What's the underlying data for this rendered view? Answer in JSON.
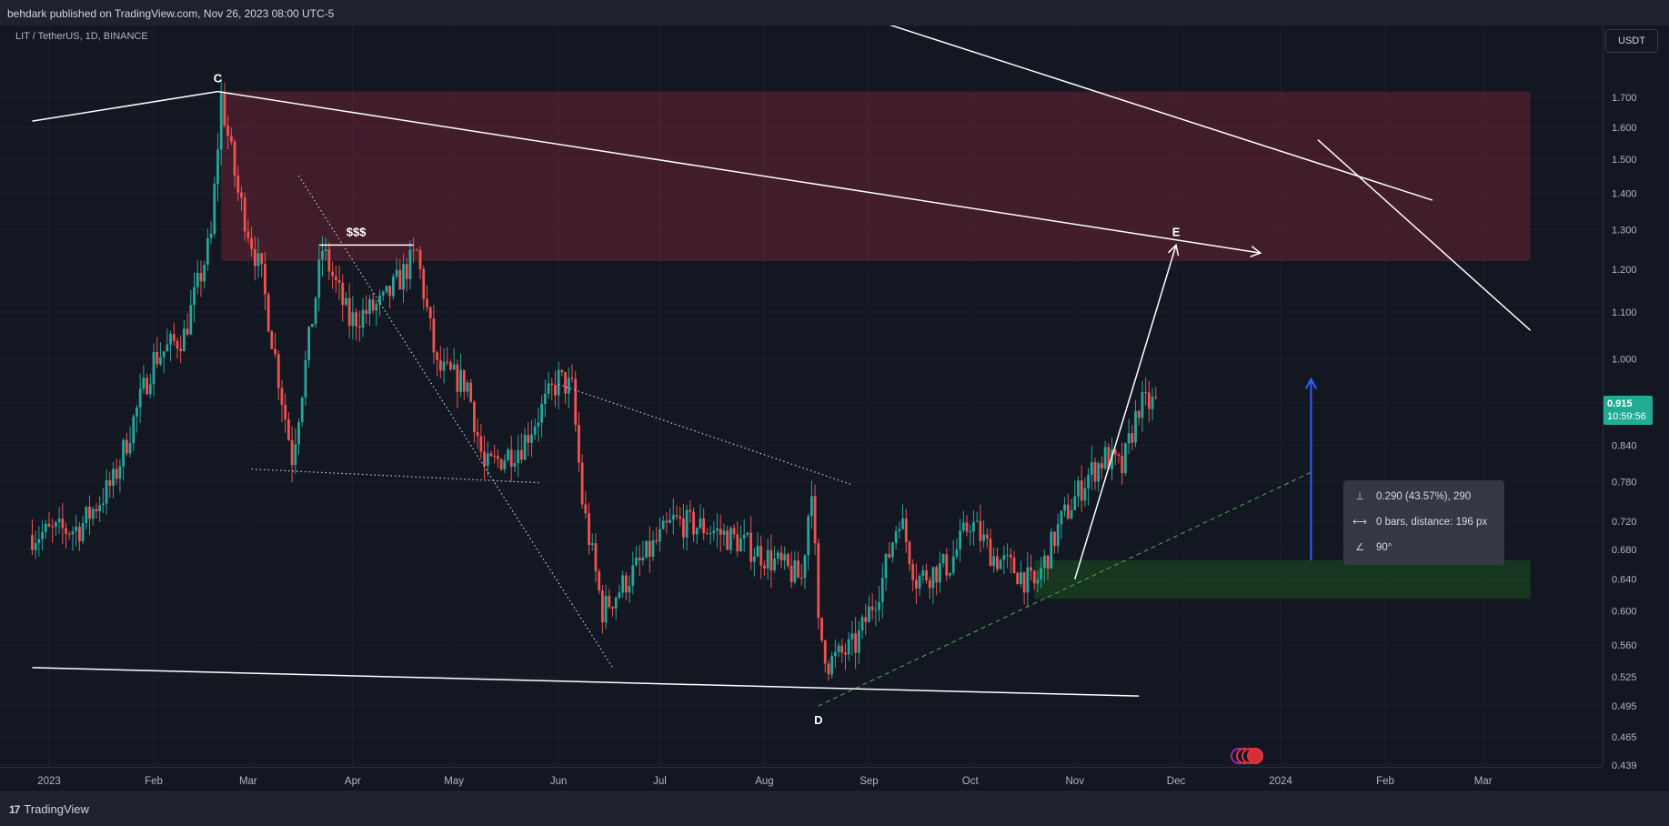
{
  "header": {
    "published": "behdark published on TradingView.com, Nov 26, 2023 08:00 UTC-5"
  },
  "symbol": {
    "label": "LIT / TetherUS, 1D, BINANCE"
  },
  "currency_button": "USDT",
  "last_price": {
    "price": "0.915",
    "countdown": "10:59:56"
  },
  "footer": {
    "logo_text": "TradingView"
  },
  "colors": {
    "background": "#131722",
    "up": "#26a69a",
    "down": "#ef5350",
    "supply_zone": "#e8334c",
    "demand_zone": "#1b5e20",
    "measure_arrow": "#2962ff"
  },
  "measure_tooltip": {
    "price_change": "0.290 (43.57%), 290",
    "bars_distance": "0 bars, distance: 196 px",
    "angle": "90°",
    "icons": [
      "price-range-icon",
      "bars-range-icon",
      "angle-icon"
    ]
  },
  "chart_data": {
    "type": "candlestick",
    "pair": "LIT / TetherUS",
    "interval": "1D",
    "exchange": "BINANCE",
    "price_scale": "log",
    "y_ticks": [
      0.439,
      0.465,
      0.495,
      0.525,
      0.56,
      0.6,
      0.64,
      0.68,
      0.72,
      0.78,
      0.84,
      0.915,
      1.0,
      1.1,
      1.2,
      1.3,
      1.4,
      1.5,
      1.6,
      1.7
    ],
    "y_tick_labels": [
      "0.439",
      "0.465",
      "0.495",
      "0.525",
      "0.560",
      "0.600",
      "0.640",
      "0.680",
      "0.720",
      "0.780",
      "0.840",
      "1.000",
      "1.100",
      "1.200",
      "1.300",
      "1.400",
      "1.500",
      "1.600",
      "1.700"
    ],
    "x_labels": [
      "2023",
      "Feb",
      "Mar",
      "Apr",
      "May",
      "Jun",
      "Jul",
      "Aug",
      "Sep",
      "Oct",
      "Nov",
      "Dec",
      "2024",
      "Feb",
      "Mar"
    ],
    "x_dates": [
      "2023-01-01",
      "2023-02-01",
      "2023-03-01",
      "2023-04-01",
      "2023-05-01",
      "2023-06-01",
      "2023-07-01",
      "2023-08-01",
      "2023-09-01",
      "2023-10-01",
      "2023-11-01",
      "2023-12-01",
      "2024-01-01",
      "2024-02-01",
      "2024-03-01"
    ],
    "last_close": 0.915,
    "price_path": [
      [
        "2022-12-27",
        0.7
      ],
      [
        "2023-01-10",
        0.71
      ],
      [
        "2023-01-20",
        0.78
      ],
      [
        "2023-02-01",
        1.0
      ],
      [
        "2023-02-10",
        1.05
      ],
      [
        "2023-02-18",
        1.28
      ],
      [
        "2023-02-21",
        1.7
      ],
      [
        "2023-02-26",
        1.4
      ],
      [
        "2023-03-05",
        1.18
      ],
      [
        "2023-03-14",
        0.82
      ],
      [
        "2023-03-23",
        1.25
      ],
      [
        "2023-03-31",
        1.08
      ],
      [
        "2023-04-10",
        1.12
      ],
      [
        "2023-04-20",
        1.24
      ],
      [
        "2023-04-26",
        0.98
      ],
      [
        "2023-05-05",
        0.95
      ],
      [
        "2023-05-10",
        0.8
      ],
      [
        "2023-05-21",
        0.84
      ],
      [
        "2023-06-01",
        0.96
      ],
      [
        "2023-06-05",
        0.94
      ],
      [
        "2023-06-08",
        0.75
      ],
      [
        "2023-06-14",
        0.6
      ],
      [
        "2023-06-25",
        0.66
      ],
      [
        "2023-07-05",
        0.72
      ],
      [
        "2023-07-15",
        0.71
      ],
      [
        "2023-07-25",
        0.69
      ],
      [
        "2023-08-05",
        0.66
      ],
      [
        "2023-08-12",
        0.64
      ],
      [
        "2023-08-15",
        0.78
      ],
      [
        "2023-08-17",
        0.58
      ],
      [
        "2023-08-20",
        0.54
      ],
      [
        "2023-08-28",
        0.56
      ],
      [
        "2023-09-05",
        0.64
      ],
      [
        "2023-09-10",
        0.73
      ],
      [
        "2023-09-15",
        0.64
      ],
      [
        "2023-09-25",
        0.66
      ],
      [
        "2023-10-01",
        0.72
      ],
      [
        "2023-10-08",
        0.67
      ],
      [
        "2023-10-15",
        0.65
      ],
      [
        "2023-10-20",
        0.63
      ],
      [
        "2023-10-28",
        0.72
      ],
      [
        "2023-11-05",
        0.79
      ],
      [
        "2023-11-10",
        0.82
      ],
      [
        "2023-11-15",
        0.8
      ],
      [
        "2023-11-20",
        0.91
      ],
      [
        "2023-11-25",
        0.915
      ]
    ],
    "annotations": [
      {
        "label": "C",
        "date": "2023-02-20",
        "price": 1.72
      },
      {
        "label": "$$$",
        "date": "2023-04-02",
        "price": 1.26
      },
      {
        "label": "D",
        "date": "2023-08-17",
        "price": 0.495
      },
      {
        "label": "E",
        "date": "2023-12-01",
        "price": 1.26
      }
    ],
    "zones": [
      {
        "name": "supply",
        "from": "2023-02-21",
        "to": "2024-03-15",
        "low": 1.22,
        "high": 1.72
      },
      {
        "name": "demand",
        "from": "2023-10-20",
        "to": "2024-03-15",
        "low": 0.615,
        "high": 0.665
      }
    ],
    "lines": [
      {
        "kind": "solid",
        "from": [
          "2022-12-27",
          1.62
        ],
        "to": [
          "2023-02-20",
          1.72
        ]
      },
      {
        "kind": "solid-arrow",
        "from": [
          "2023-02-20",
          1.72
        ],
        "to": [
          "2023-12-26",
          1.24
        ]
      },
      {
        "kind": "solid",
        "from": [
          "2023-03-22",
          1.26
        ],
        "to": [
          "2023-04-19",
          1.26
        ]
      },
      {
        "kind": "solid",
        "from": [
          "2022-12-27",
          0.535
        ],
        "to": [
          "2023-11-20",
          0.505
        ]
      },
      {
        "kind": "dotted",
        "from": [
          "2023-03-02",
          0.8
        ],
        "to": [
          "2023-05-27",
          0.778
        ]
      },
      {
        "kind": "dotted",
        "from": [
          "2023-03-16",
          1.45
        ],
        "to": [
          "2023-06-17",
          0.535
        ]
      },
      {
        "kind": "dotted",
        "from": [
          "2023-06-01",
          0.95
        ],
        "to": [
          "2023-08-27",
          0.775
        ]
      },
      {
        "kind": "dashed",
        "from": [
          "2023-08-17",
          0.495
        ],
        "to": [
          "2024-01-10",
          0.795
        ]
      },
      {
        "kind": "solid-arrow",
        "from": [
          "2023-11-01",
          0.64
        ],
        "to": [
          "2023-12-01",
          1.26
        ]
      },
      {
        "kind": "solid",
        "from": [
          "2023-08-09",
          2.1
        ],
        "to": [
          "2024-02-15",
          1.38
        ]
      },
      {
        "kind": "solid",
        "from": [
          "2024-01-12",
          1.56
        ],
        "to": [
          "2024-03-15",
          1.06
        ]
      },
      {
        "kind": "measure-arrow",
        "from": [
          "2024-01-10",
          0.665
        ],
        "to": [
          "2024-01-10",
          0.96
        ]
      }
    ]
  }
}
